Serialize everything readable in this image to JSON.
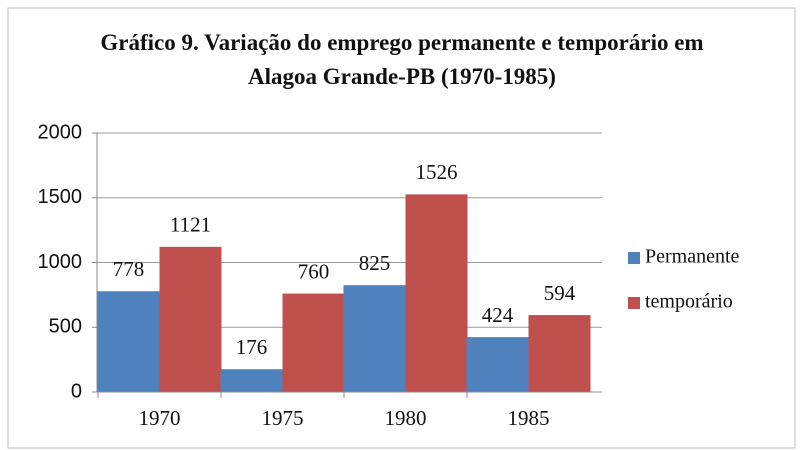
{
  "chart_data": {
    "type": "bar",
    "title": "Gráfico 9. Variação do emprego permanente e temporário em Alagoa Grande-PB (1970-1985)",
    "categories": [
      "1970",
      "1975",
      "1980",
      "1985"
    ],
    "series": [
      {
        "name": "Permanente",
        "color": "#4f81bd",
        "values": [
          778,
          176,
          825,
          424
        ]
      },
      {
        "name": "temporário",
        "color": "#c0504d",
        "values": [
          1121,
          760,
          1526,
          594
        ]
      }
    ],
    "ylim": [
      0,
      2000
    ],
    "yticks": [
      0,
      500,
      1000,
      1500,
      2000
    ],
    "grid": true,
    "legend": "right"
  }
}
